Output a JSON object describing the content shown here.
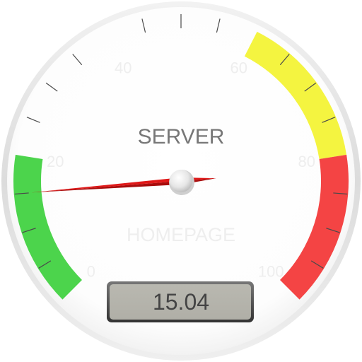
{
  "gauge": {
    "title": "SERVER",
    "units": "HOMEPAGE",
    "value": 15.04,
    "value_display": "15.04",
    "min": 0,
    "max": 100,
    "major_ticks": [
      "0",
      "20",
      "40",
      "60",
      "80",
      "100"
    ],
    "highlights": [
      {
        "from": 0,
        "to": 20,
        "color": "#4cd44c"
      },
      {
        "from": 60,
        "to": 80,
        "color": "#f4f440"
      },
      {
        "from": 80,
        "to": 100,
        "color": "#f44444"
      }
    ],
    "needle_color": "#e01818"
  }
}
